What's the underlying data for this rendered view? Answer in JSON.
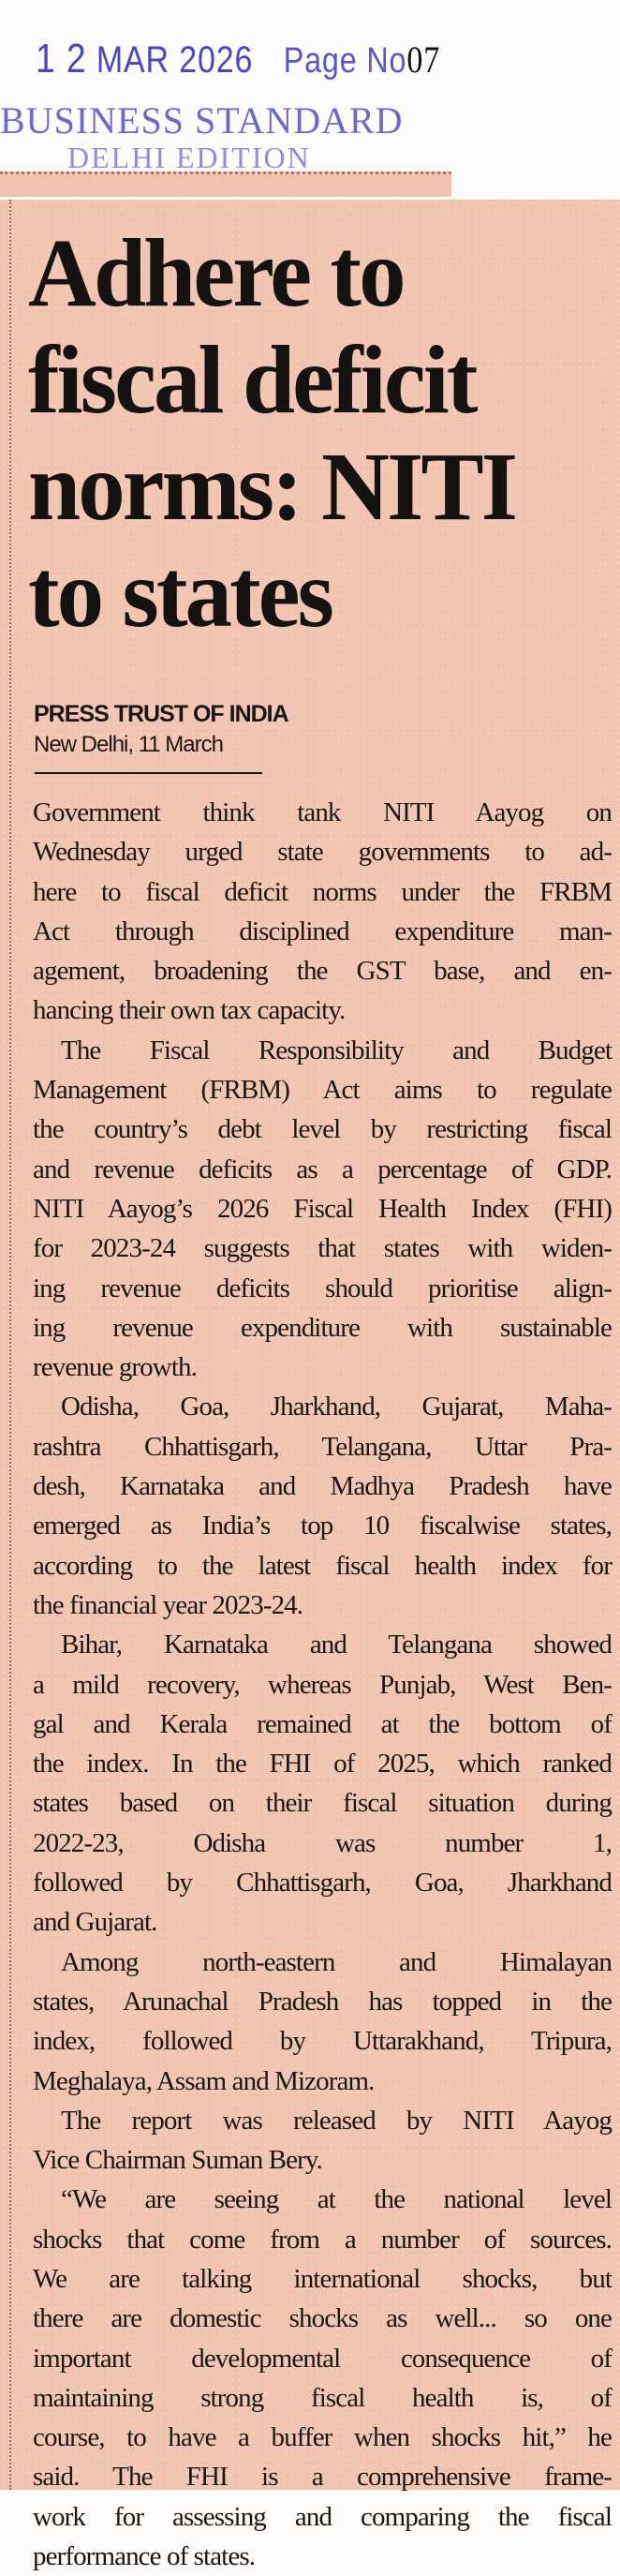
{
  "stamp": {
    "day": "1 2",
    "date": "MAR 2026",
    "page_label": "Page No",
    "page_number": "07"
  },
  "masthead": {
    "paper": "BUSINESS STANDARD",
    "edition": "DELHI EDITION"
  },
  "article": {
    "headline": [
      "Adhere to",
      "fiscal deficit",
      "norms: NITI",
      "to states"
    ],
    "byline": "PRESS TRUST OF INDIA",
    "dateline": "New Delhi, 11 March",
    "paragraphs": [
      {
        "lines": [
          "Government think tank NITI Aayog on",
          "Wednesday urged state governments to ad-",
          "here to fiscal deficit norms under the FRBM",
          "Act through disciplined expenditure man-",
          "agement, broadening the GST base, and en-",
          "hancing their own tax capacity."
        ]
      },
      {
        "lines": [
          "The Fiscal Responsibility and Budget",
          "Management (FRBM) Act aims to regulate",
          "the country’s debt level by restricting fiscal",
          "and revenue deficits as a percentage of GDP.",
          "NITI Aayog’s 2026 Fiscal Health Index (FHI)",
          "for 2023-24 suggests that states with widen-",
          "ing revenue deficits should prioritise align-",
          "ing revenue expenditure with sustainable",
          "revenue growth."
        ]
      },
      {
        "lines": [
          "Odisha, Goa, Jharkhand, Gujarat, Maha-",
          "rashtra Chhattisgarh, Telangana, Uttar Pra-",
          "desh, Karnataka and Madhya Pradesh have",
          "emerged as India’s top 10 fiscalwise states,",
          "according to the latest fiscal health index for",
          "the financial year 2023-24."
        ]
      },
      {
        "lines": [
          "Bihar, Karnataka and Telangana showed",
          "a mild recovery, whereas Punjab, West Ben-",
          "gal and Kerala remained at the bottom of",
          "the index. In the FHI of 2025, which ranked",
          "states based on their fiscal situation during",
          "2022-23, Odisha was number 1,",
          "followed by Chhattisgarh, Goa, Jharkhand",
          "and Gujarat."
        ]
      },
      {
        "lines": [
          "Among north-eastern and Himalayan",
          "states, Arunachal Pradesh has topped in the",
          "index, followed by Uttarakhand, Tripura,",
          "Meghalaya, Assam and Mizoram."
        ]
      },
      {
        "lines": [
          "The report was released by NITI Aayog",
          "Vice Chairman Suman Bery."
        ]
      },
      {
        "lines": [
          "“We are seeing at the national level",
          "shocks that come from a number of sources.",
          "We are talking international shocks, but",
          "there are domestic shocks as well... so one",
          "important developmental consequence of",
          "maintaining strong fiscal health is, of",
          "course, to have a buffer when shocks hit,” he",
          "said. The FHI is a comprehensive frame-",
          "work for assessing and comparing the fiscal",
          "performance of states."
        ]
      }
    ]
  }
}
